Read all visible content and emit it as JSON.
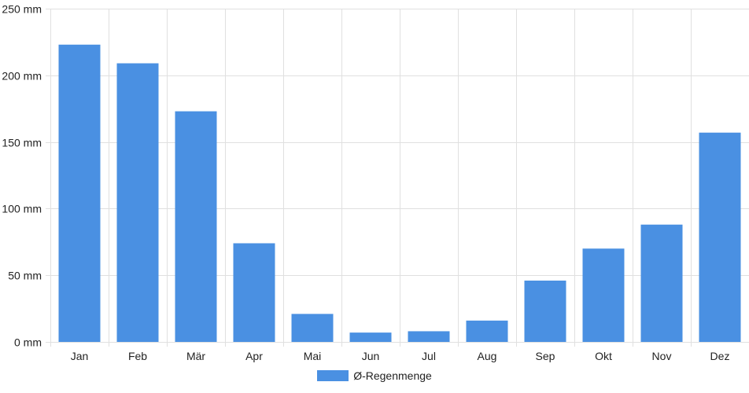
{
  "chart_data": {
    "type": "bar",
    "title": "",
    "xlabel": "",
    "ylabel": "",
    "categories": [
      "Jan",
      "Feb",
      "Mär",
      "Apr",
      "Mai",
      "Jun",
      "Jul",
      "Aug",
      "Sep",
      "Okt",
      "Nov",
      "Dez"
    ],
    "series": [
      {
        "name": "Ø-Regenmenge",
        "values": [
          223,
          209,
          173,
          74,
          21,
          7,
          8,
          16,
          46,
          70,
          88,
          157
        ],
        "color": "#4a90e2"
      }
    ],
    "ylim": [
      0,
      250
    ],
    "yticks": [
      0,
      50,
      100,
      150,
      200,
      250
    ],
    "ytick_labels": [
      "0 mm",
      "50 mm",
      "100 mm",
      "150 mm",
      "200 mm",
      "250 mm"
    ],
    "grid": true,
    "legend_position": "bottom-center"
  },
  "colors": {
    "bar": "#4a90e2",
    "grid": "#e0e0e0",
    "axis": "#cccccc"
  }
}
